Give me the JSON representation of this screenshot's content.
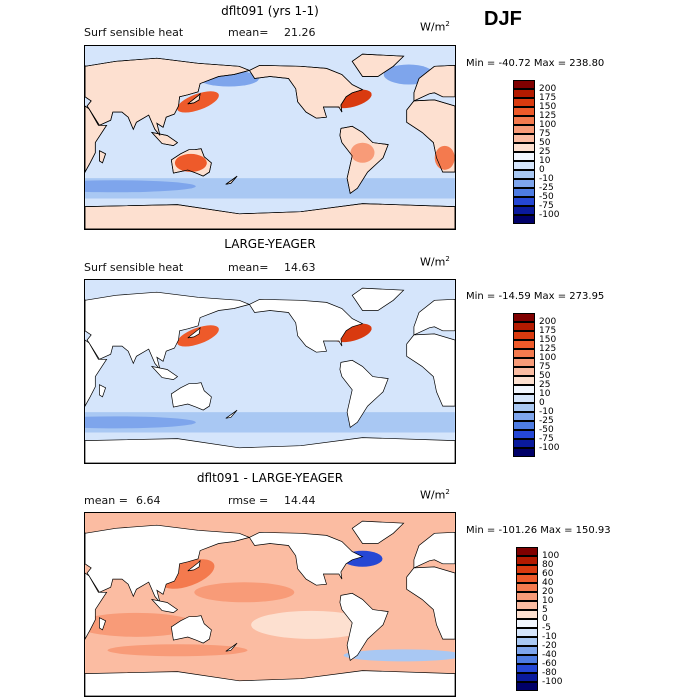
{
  "season": "DJF",
  "panels": [
    {
      "title": "dflt091 (yrs 1-1)",
      "left_label": "Surf sensible heat",
      "mean_label": "mean=",
      "mean_value": "21.26",
      "units": "W/m",
      "units_sup": "2",
      "minmax": "Min = -40.72 Max = 238.80",
      "palette": "base",
      "colorbar_labels": [
        "200",
        "175",
        "150",
        "125",
        "100",
        "75",
        "50",
        "25",
        "10",
        "0",
        "-10",
        "-25",
        "-50",
        "-75",
        "-100"
      ]
    },
    {
      "title": "LARGE-YEAGER",
      "left_label": "Surf sensible heat",
      "mean_label": "mean=",
      "mean_value": "14.63",
      "units": "W/m",
      "units_sup": "2",
      "minmax": "Min = -14.59 Max = 273.95",
      "palette": "base",
      "colorbar_labels": [
        "200",
        "175",
        "150",
        "125",
        "100",
        "75",
        "50",
        "25",
        "10",
        "0",
        "-10",
        "-25",
        "-50",
        "-75",
        "-100"
      ]
    },
    {
      "title": "dflt091 - LARGE-YEAGER",
      "left_label": "mean =",
      "mean_label": "",
      "mean_value": "6.64",
      "rmse_label": "rmse =",
      "rmse_value": "14.44",
      "units": "W/m",
      "units_sup": "2",
      "minmax": "Min = -101.26 Max = 150.93",
      "palette": "diff",
      "colorbar_labels": [
        "100",
        "80",
        "60",
        "40",
        "20",
        "10",
        "5",
        "0",
        "-5",
        "-10",
        "-20",
        "-40",
        "-60",
        "-80",
        "-100"
      ]
    }
  ],
  "colors": {
    "base": [
      "#7f0000",
      "#b31a00",
      "#d93a0f",
      "#ee5a2a",
      "#f47a4e",
      "#f89b78",
      "#fbbca2",
      "#fde0d0",
      "#f2f7ff",
      "#d5e5fb",
      "#a9c8f3",
      "#7ea5ec",
      "#4e7ce2",
      "#2547d4",
      "#0a1a9c",
      "#000068"
    ],
    "diff": [
      "#7f0000",
      "#b31a00",
      "#d93a0f",
      "#ee5a2a",
      "#f47a4e",
      "#f89b78",
      "#fbbca2",
      "#fde0d0",
      "#f2f7ff",
      "#d5e5fb",
      "#a9c8f3",
      "#7ea5ec",
      "#4e7ce2",
      "#2547d4",
      "#0a1a9c",
      "#000068"
    ]
  }
}
